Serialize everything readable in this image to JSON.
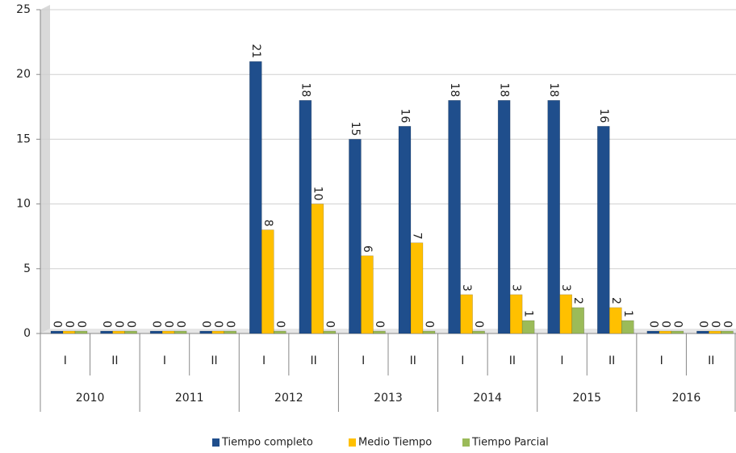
{
  "chart_data": {
    "type": "bar",
    "categories": [
      "I",
      "II",
      "I",
      "II",
      "I",
      "II",
      "I",
      "II",
      "I",
      "II",
      "I",
      "II",
      "I",
      "II"
    ],
    "years": [
      "2010",
      "2011",
      "2012",
      "2013",
      "2014",
      "2015",
      "2016"
    ],
    "series": [
      {
        "name": "Tiempo completo",
        "color": "#1f4e8c",
        "values": [
          0,
          0,
          0,
          0,
          21,
          18,
          15,
          16,
          18,
          18,
          18,
          16,
          0,
          0
        ]
      },
      {
        "name": "Medio Tiempo",
        "color": "#ffc000",
        "values": [
          0,
          0,
          0,
          0,
          8,
          10,
          6,
          7,
          3,
          3,
          3,
          2,
          0,
          0
        ]
      },
      {
        "name": "Tiempo Parcial",
        "color": "#9bbb59",
        "values": [
          0,
          0,
          0,
          0,
          0,
          0,
          0,
          0,
          0,
          1,
          2,
          1,
          0,
          0
        ]
      }
    ],
    "ylim": [
      0,
      25
    ],
    "yticks": [
      0,
      5,
      10,
      15,
      20,
      25
    ],
    "grid": true,
    "legend": "bottom"
  }
}
